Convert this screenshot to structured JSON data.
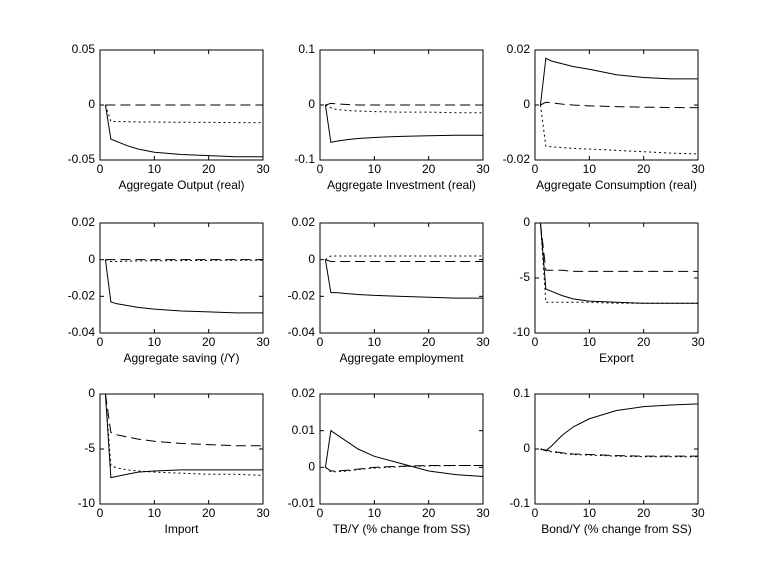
{
  "chart_data": [
    {
      "type": "line",
      "xlabel": "Aggregate Output (real)",
      "x": [
        1,
        2,
        3,
        5,
        7,
        10,
        15,
        20,
        25,
        30
      ],
      "xlim": [
        0,
        30
      ],
      "xticks": [
        0,
        10,
        20,
        30
      ],
      "ylim": [
        -0.05,
        0.05
      ],
      "yticks": [
        -0.05,
        0,
        0.05
      ],
      "series": [
        {
          "color": "#000000",
          "line_style": "solid",
          "values": [
            0,
            -0.031,
            -0.033,
            -0.037,
            -0.04,
            -0.043,
            -0.045,
            -0.046,
            -0.047,
            -0.047
          ]
        },
        {
          "color": "#000000",
          "line_style": "dash",
          "values": [
            0,
            0,
            0,
            0,
            0,
            0,
            0,
            0,
            0,
            0
          ]
        },
        {
          "color": "#000000",
          "line_style": "dot",
          "values": [
            0,
            -0.015,
            -0.015,
            -0.0152,
            -0.0154,
            -0.0155,
            -0.0157,
            -0.0158,
            -0.016,
            -0.016
          ]
        }
      ]
    },
    {
      "type": "line",
      "xlabel": "Aggregate Investment (real)",
      "x": [
        1,
        2,
        3,
        5,
        7,
        10,
        15,
        20,
        25,
        30
      ],
      "xlim": [
        0,
        30
      ],
      "xticks": [
        0,
        10,
        20,
        30
      ],
      "ylim": [
        -0.1,
        0.1
      ],
      "yticks": [
        -0.1,
        0,
        0.1
      ],
      "series": [
        {
          "color": "#000000",
          "line_style": "solid",
          "values": [
            0,
            -0.068,
            -0.066,
            -0.063,
            -0.061,
            -0.059,
            -0.057,
            -0.056,
            -0.055,
            -0.055
          ]
        },
        {
          "color": "#000000",
          "line_style": "dash",
          "values": [
            0,
            0.003,
            0.002,
            0.001,
            0,
            0,
            0,
            0,
            0,
            0
          ]
        },
        {
          "color": "#000000",
          "line_style": "dot",
          "values": [
            0,
            -0.005,
            -0.008,
            -0.01,
            -0.011,
            -0.012,
            -0.013,
            -0.013,
            -0.014,
            -0.014
          ]
        }
      ]
    },
    {
      "type": "line",
      "xlabel": "Aggregate Consumption (real)",
      "x": [
        1,
        2,
        3,
        5,
        7,
        10,
        15,
        20,
        25,
        30
      ],
      "xlim": [
        0,
        30
      ],
      "xticks": [
        0,
        10,
        20,
        30
      ],
      "ylim": [
        -0.02,
        0.02
      ],
      "yticks": [
        -0.02,
        0,
        0.02
      ],
      "series": [
        {
          "color": "#000000",
          "line_style": "solid",
          "values": [
            0,
            0.017,
            0.016,
            0.015,
            0.014,
            0.013,
            0.011,
            0.01,
            0.0095,
            0.0095
          ]
        },
        {
          "color": "#000000",
          "line_style": "dash",
          "values": [
            0,
            0.001,
            0.0008,
            0.0003,
            0,
            -0.0003,
            -0.0006,
            -0.0008,
            -0.0009,
            -0.001
          ]
        },
        {
          "color": "#000000",
          "line_style": "dot",
          "values": [
            0,
            -0.015,
            -0.0152,
            -0.0155,
            -0.0158,
            -0.016,
            -0.0165,
            -0.017,
            -0.0175,
            -0.0178
          ]
        }
      ]
    },
    {
      "type": "line",
      "xlabel": "Aggregate saving (/Y)",
      "x": [
        1,
        2,
        3,
        5,
        7,
        10,
        15,
        20,
        25,
        30
      ],
      "xlim": [
        0,
        30
      ],
      "xticks": [
        0,
        10,
        20,
        30
      ],
      "ylim": [
        -0.04,
        0.02
      ],
      "yticks": [
        -0.04,
        -0.02,
        0,
        0.02
      ],
      "series": [
        {
          "color": "#000000",
          "line_style": "solid",
          "values": [
            0,
            -0.023,
            -0.024,
            -0.025,
            -0.026,
            -0.027,
            -0.028,
            -0.0285,
            -0.029,
            -0.029
          ]
        },
        {
          "color": "#000000",
          "line_style": "dash",
          "values": [
            0,
            0,
            0,
            0,
            0,
            0,
            0,
            0,
            0,
            0
          ]
        },
        {
          "color": "#000000",
          "line_style": "dot",
          "values": [
            0,
            -0.001,
            -0.001,
            -0.0008,
            -0.0007,
            -0.0006,
            -0.0005,
            -0.0004,
            -0.0003,
            -0.0003
          ]
        }
      ]
    },
    {
      "type": "line",
      "xlabel": "Aggregate employment",
      "x": [
        1,
        2,
        3,
        5,
        7,
        10,
        15,
        20,
        25,
        30
      ],
      "xlim": [
        0,
        30
      ],
      "xticks": [
        0,
        10,
        20,
        30
      ],
      "ylim": [
        -0.04,
        0.02
      ],
      "yticks": [
        -0.04,
        -0.02,
        0,
        0.02
      ],
      "series": [
        {
          "color": "#000000",
          "line_style": "solid",
          "values": [
            0,
            -0.018,
            -0.018,
            -0.0185,
            -0.019,
            -0.0195,
            -0.02,
            -0.0205,
            -0.021,
            -0.021
          ]
        },
        {
          "color": "#000000",
          "line_style": "dash",
          "values": [
            0,
            -0.001,
            -0.001,
            -0.001,
            -0.001,
            -0.001,
            -0.001,
            -0.001,
            -0.001,
            -0.001
          ]
        },
        {
          "color": "#000000",
          "line_style": "dot",
          "values": [
            0,
            0.002,
            0.002,
            0.002,
            0.002,
            0.002,
            0.002,
            0.002,
            0.002,
            0.002
          ]
        }
      ]
    },
    {
      "type": "line",
      "xlabel": "Export",
      "x": [
        1,
        2,
        3,
        5,
        7,
        10,
        15,
        20,
        25,
        30
      ],
      "xlim": [
        0,
        30
      ],
      "xticks": [
        0,
        10,
        20,
        30
      ],
      "ylim": [
        -10,
        0
      ],
      "yticks": [
        -10,
        -5,
        0
      ],
      "series": [
        {
          "color": "#000000",
          "line_style": "solid",
          "values": [
            0,
            -6,
            -6.2,
            -6.6,
            -6.9,
            -7.1,
            -7.2,
            -7.3,
            -7.3,
            -7.3
          ]
        },
        {
          "color": "#000000",
          "line_style": "dash",
          "values": [
            0,
            -4.3,
            -4.3,
            -4.3,
            -4.4,
            -4.4,
            -4.4,
            -4.4,
            -4.4,
            -4.4
          ]
        },
        {
          "color": "#000000",
          "line_style": "dot",
          "values": [
            0,
            -7.2,
            -7.2,
            -7.2,
            -7.2,
            -7.2,
            -7.3,
            -7.3,
            -7.3,
            -7.3
          ]
        }
      ]
    },
    {
      "type": "line",
      "xlabel": "Import",
      "x": [
        1,
        2,
        3,
        5,
        7,
        10,
        15,
        20,
        25,
        30
      ],
      "xlim": [
        0,
        30
      ],
      "xticks": [
        0,
        10,
        20,
        30
      ],
      "ylim": [
        -10,
        0
      ],
      "yticks": [
        -10,
        -5,
        0
      ],
      "series": [
        {
          "color": "#000000",
          "line_style": "solid",
          "values": [
            0,
            -7.6,
            -7.5,
            -7.3,
            -7.1,
            -7.0,
            -6.9,
            -6.9,
            -6.9,
            -6.9
          ]
        },
        {
          "color": "#000000",
          "line_style": "dash",
          "values": [
            0,
            -3.5,
            -3.7,
            -3.9,
            -4.1,
            -4.3,
            -4.5,
            -4.6,
            -4.7,
            -4.7
          ]
        },
        {
          "color": "#000000",
          "line_style": "dot",
          "values": [
            0,
            -6.5,
            -6.7,
            -6.9,
            -7.0,
            -7.1,
            -7.2,
            -7.3,
            -7.3,
            -7.4
          ]
        }
      ]
    },
    {
      "type": "line",
      "xlabel": "TB/Y (% change from SS)",
      "x": [
        1,
        2,
        3,
        5,
        7,
        10,
        15,
        20,
        25,
        30
      ],
      "xlim": [
        0,
        30
      ],
      "xticks": [
        0,
        10,
        20,
        30
      ],
      "ylim": [
        -0.01,
        0.02
      ],
      "yticks": [
        -0.01,
        0,
        0.01,
        0.02
      ],
      "series": [
        {
          "color": "#000000",
          "line_style": "solid",
          "values": [
            0,
            0.01,
            0.009,
            0.007,
            0.005,
            0.003,
            0.001,
            -0.001,
            -0.002,
            -0.0025
          ]
        },
        {
          "color": "#000000",
          "line_style": "dash",
          "values": [
            0,
            -0.001,
            -0.001,
            -0.0008,
            -0.0005,
            0,
            0.0003,
            0.0005,
            0.0005,
            0.0005
          ]
        },
        {
          "color": "#000000",
          "line_style": "dot",
          "values": [
            0,
            -0.0012,
            -0.0012,
            -0.001,
            -0.0006,
            -0.0002,
            0.0002,
            0.0004,
            0.0005,
            0.0005
          ]
        }
      ]
    },
    {
      "type": "line",
      "xlabel": "Bond/Y (% change from SS)",
      "x": [
        1,
        2,
        3,
        5,
        7,
        10,
        15,
        20,
        25,
        30
      ],
      "xlim": [
        0,
        30
      ],
      "xticks": [
        0,
        10,
        20,
        30
      ],
      "ylim": [
        -0.1,
        0.1
      ],
      "yticks": [
        -0.1,
        0,
        0.1
      ],
      "series": [
        {
          "color": "#000000",
          "line_style": "solid",
          "values": [
            0,
            -0.003,
            0.005,
            0.025,
            0.04,
            0.055,
            0.07,
            0.077,
            0.08,
            0.082
          ]
        },
        {
          "color": "#000000",
          "line_style": "dash",
          "values": [
            0,
            -0.002,
            -0.004,
            -0.007,
            -0.009,
            -0.01,
            -0.012,
            -0.013,
            -0.013,
            -0.013
          ]
        },
        {
          "color": "#000000",
          "line_style": "dot",
          "values": [
            0,
            -0.003,
            -0.005,
            -0.008,
            -0.01,
            -0.011,
            -0.013,
            -0.014,
            -0.014,
            -0.014
          ]
        }
      ]
    }
  ]
}
